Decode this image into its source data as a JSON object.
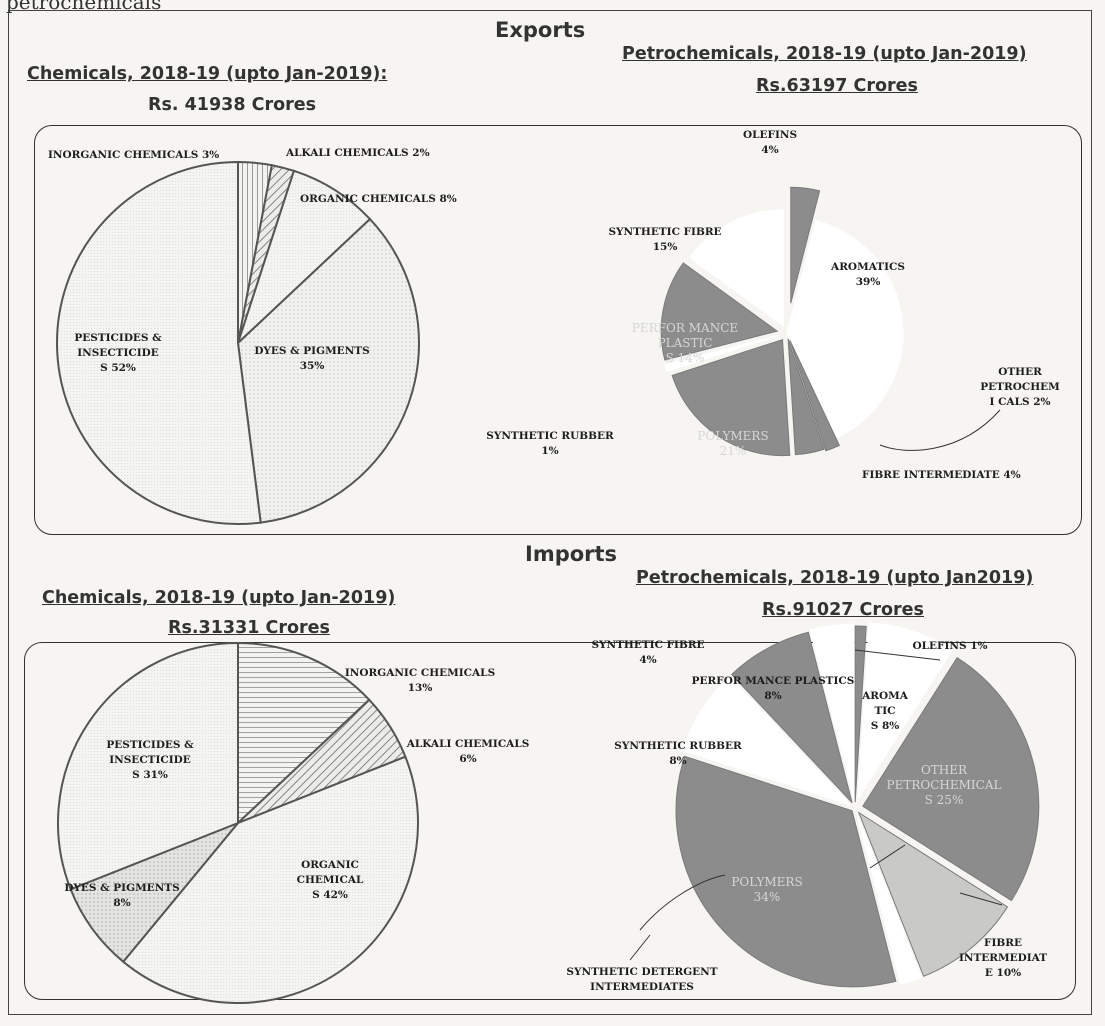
{
  "top_caption": "petrochemicals",
  "exports": {
    "section_title": "Exports",
    "chemicals_heading": "Chemicals, 2018-19 (upto Jan-2019):",
    "chemicals_total": "Rs. 41938 Crores",
    "petro_heading": "Petrochemicals, 2018-19 (upto Jan-2019)",
    "petro_total": "Rs.63197 Crores"
  },
  "imports": {
    "section_title": "Imports",
    "chemicals_heading": "Chemicals, 2018-19 (upto Jan-2019)",
    "chemicals_total": "Rs.31331 Crores",
    "petro_heading": "Petrochemicals, 2018-19 (upto Jan2019)",
    "petro_total": "Rs.91027 Crores"
  },
  "colors": {
    "light_slice": "#eeeeea",
    "dark_slice": "#8c8c8c",
    "outline": "#555555"
  },
  "chart_data": [
    {
      "type": "pie",
      "title": "Chemicals, 2018-19 (upto Jan-2019):",
      "subtitle": "Rs. 41938 Crores",
      "slices": [
        {
          "category": "INORGANIC CHEMICALS",
          "value": 3,
          "label": "INORGANIC CHEMICALS 3%"
        },
        {
          "category": "ALKALI CHEMICALS",
          "value": 2,
          "label": "ALKALI CHEMICALS 2%"
        },
        {
          "category": "ORGANIC CHEMICALS",
          "value": 8,
          "label": "ORGANIC CHEMICALS 8%"
        },
        {
          "category": "DYES & PIGMENTS",
          "value": 35,
          "label": "DYES & PIGMENTS 35%"
        },
        {
          "category": "PESTICIDES & INSECTICIDES",
          "value": 52,
          "label": "PESTICIDES & INSECTICIDES 52%"
        }
      ]
    },
    {
      "type": "pie",
      "title": "Petrochemicals, 2018-19 (upto Jan-2019)",
      "subtitle": "Rs.63197 Crores",
      "slices": [
        {
          "category": "OLEFINS",
          "value": 4,
          "label": "OLEFINS 4%"
        },
        {
          "category": "AROMATICS",
          "value": 39,
          "label": "AROMATICS 39%"
        },
        {
          "category": "OTHER PETROCHEMICALS",
          "value": 2,
          "label": "OTHER PETROCHEMI CALS 2%"
        },
        {
          "category": "FIBRE INTERMEDIATE",
          "value": 4,
          "label": "FIBRE INTERMEDIATE 4%"
        },
        {
          "category": "POLYMERS",
          "value": 21,
          "label": "POLYMERS 21%"
        },
        {
          "category": "SYNTHETIC RUBBER",
          "value": 1,
          "label": "SYNTHETIC RUBBER 1%"
        },
        {
          "category": "PERFORMANCE PLASTICS",
          "value": 14,
          "label": "PERFOR MANCE PLASTICS 14%"
        },
        {
          "category": "SYNTHETIC FIBRE",
          "value": 15,
          "label": "SYNTHETIC FIBRE 15%"
        }
      ]
    },
    {
      "type": "pie",
      "title": "Chemicals, 2018-19 (upto Jan-2019)",
      "subtitle": "Rs.31331 Crores",
      "slices": [
        {
          "category": "INORGANIC CHEMICALS",
          "value": 13,
          "label": "INORGANIC CHEMICALS 13%"
        },
        {
          "category": "ALKALI CHEMICALS",
          "value": 6,
          "label": "ALKALI CHEMICALS 6%"
        },
        {
          "category": "ORGANIC CHEMICALS",
          "value": 42,
          "label": "ORGANIC CHEMICALS 42%"
        },
        {
          "category": "DYES & PIGMENTS",
          "value": 8,
          "label": "DYES & PIGMENTS 8%"
        },
        {
          "category": "PESTICIDES & INSECTICIDES",
          "value": 31,
          "label": "PESTICIDES & INSECTICIDES 31%"
        }
      ]
    },
    {
      "type": "pie",
      "title": "Petrochemicals, 2018-19 (upto Jan2019)",
      "subtitle": "Rs.91027 Crores",
      "slices": [
        {
          "category": "OLEFINS",
          "value": 1,
          "label": "OLEFINS 1%"
        },
        {
          "category": "AROMATICS",
          "value": 8,
          "label": "AROMA TICS 8%"
        },
        {
          "category": "OTHER PETROCHEMICALS",
          "value": 25,
          "label": "OTHER PETROCHEMICALS 25%"
        },
        {
          "category": "FIBRE INTERMEDIATE",
          "value": 10,
          "label": "FIBRE INTERMEDIATE 10%"
        },
        {
          "category": "SYNTHETIC DETERGENT INTERMEDIATES",
          "value": 2,
          "label": "SYNTHETIC DETERGENT INTERMEDIATES"
        },
        {
          "category": "POLYMERS",
          "value": 34,
          "label": "POLYMERS 34%"
        },
        {
          "category": "SYNTHETIC RUBBER",
          "value": 8,
          "label": "SYNTHETIC RUBBER 8%"
        },
        {
          "category": "PERFORMANCE PLASTICS",
          "value": 8,
          "label": "PERFOR MANCE PLASTICS 8%"
        },
        {
          "category": "SYNTHETIC FIBRE",
          "value": 4,
          "label": "SYNTHETIC FIBRE 4%"
        }
      ]
    }
  ]
}
